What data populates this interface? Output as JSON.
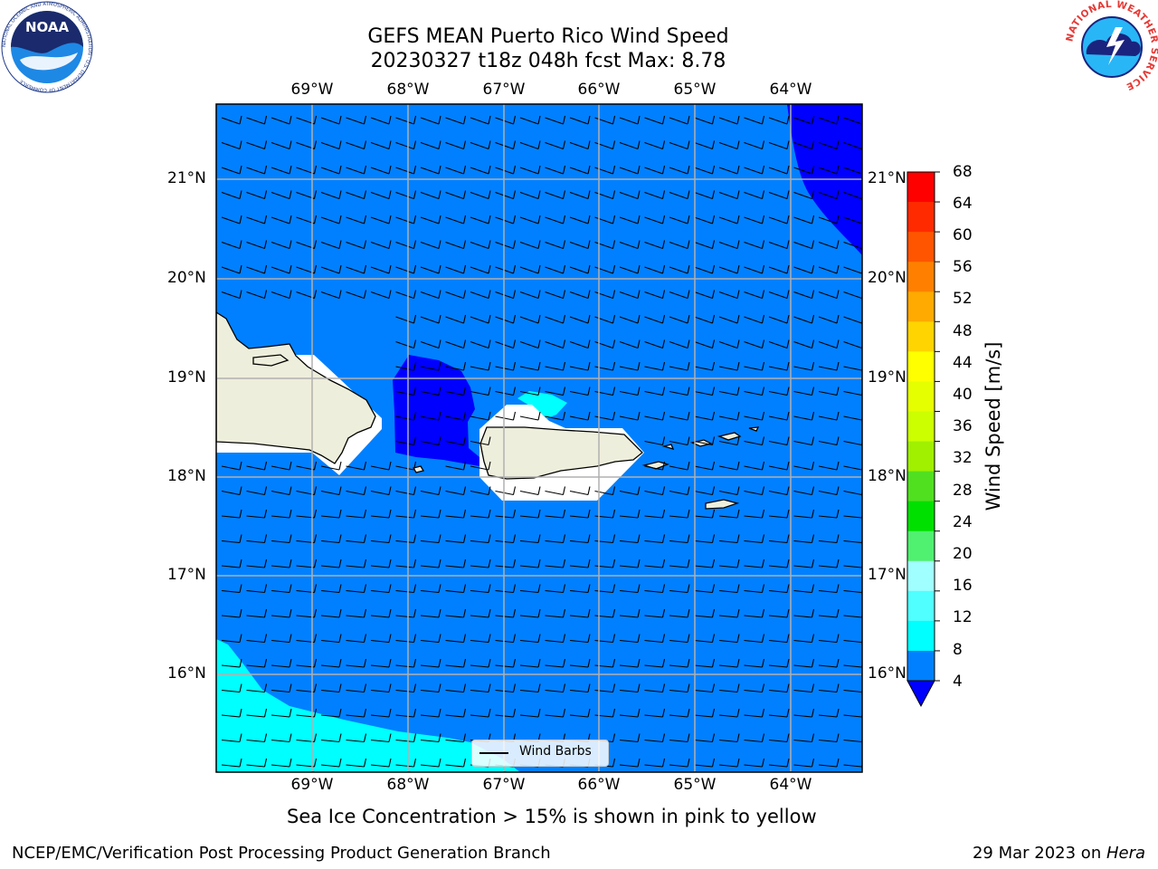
{
  "title_line1": "GEFS MEAN Puerto Rico Wind Speed",
  "title_line2": "20230327 t18z 048h fcst   Max: 8.78",
  "lon_labels": [
    "69°W",
    "68°W",
    "67°W",
    "66°W",
    "65°W",
    "64°W"
  ],
  "lat_labels": [
    "21°N",
    "20°N",
    "19°N",
    "18°N",
    "17°N",
    "16°N"
  ],
  "colorbar": {
    "label": "Wind Speed [m/s]",
    "ticks": [
      "68",
      "64",
      "60",
      "56",
      "52",
      "48",
      "44",
      "40",
      "36",
      "32",
      "28",
      "24",
      "20",
      "16",
      "12",
      "8",
      "4"
    ],
    "colors": [
      "#ff0000",
      "#ff2a00",
      "#ff5500",
      "#ff8000",
      "#ffaa00",
      "#ffd400",
      "#ffff00",
      "#e6ff00",
      "#ccff00",
      "#a0f000",
      "#50e020",
      "#00e000",
      "#50f070",
      "#a0ffff",
      "#50ffff",
      "#00ffff",
      "#0080ff"
    ],
    "extend_color": "#0000ff"
  },
  "legend": {
    "label": "Wind Barbs"
  },
  "subtitle": "Sea Ice Concentration > 15% is shown in pink to yellow",
  "footer_left": "NCEP/EMC/Verification Post Processing Product Generation Branch",
  "footer_date": "29 Mar 2023 on ",
  "footer_machine": "Hera",
  "logo_left": {
    "text": "NOAA",
    "ring": "NATIONAL OCEANIC AND ATMOSPHERIC ADMINISTRATION · U.S. DEPARTMENT OF COMMERCE"
  },
  "logo_right": {
    "ring": "NATIONAL WEATHER SERVICE"
  },
  "colors": {
    "ocean": "#0080ff",
    "strong_low": "#0000ff",
    "cyan": "#00ffff",
    "land": "#eeeedc"
  }
}
